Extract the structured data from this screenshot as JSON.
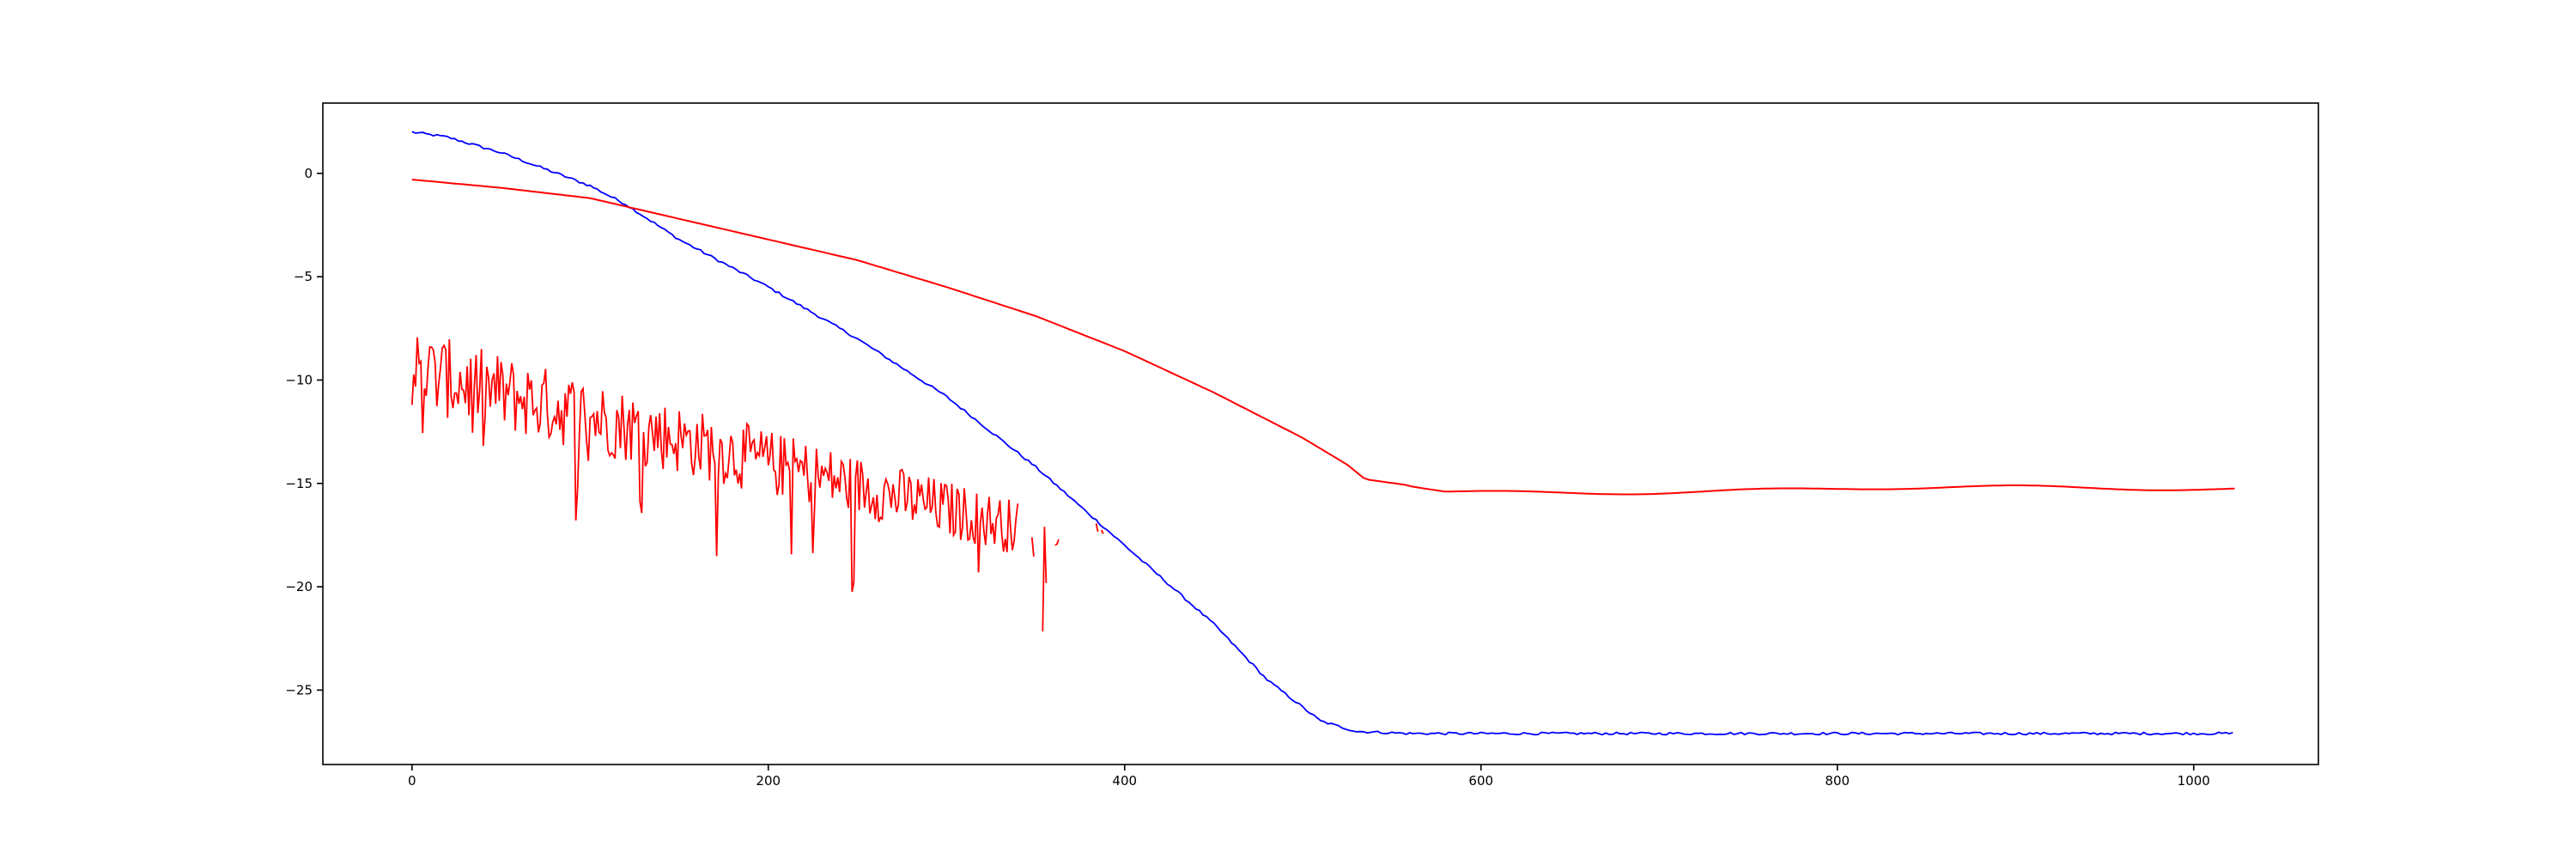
{
  "chart_data": {
    "type": "line",
    "title": "",
    "xlabel": "",
    "ylabel": "",
    "xlim": [
      -50,
      1070
    ],
    "ylim": [
      -28.6,
      3.4
    ],
    "xticks": [
      0,
      200,
      400,
      600,
      800,
      1000
    ],
    "yticks": [
      0,
      -5,
      -10,
      -15,
      -20,
      -25
    ],
    "grid": false,
    "legend": "none",
    "series": [
      {
        "color": "#0000ff",
        "style": "solid-noisy",
        "points": [
          [
            0,
            2.0
          ],
          [
            20,
            1.75
          ],
          [
            50,
            1.0
          ],
          [
            100,
            -0.6
          ],
          [
            120,
            -1.5
          ],
          [
            150,
            -3.2
          ],
          [
            200,
            -5.5
          ],
          [
            250,
            -8.0
          ],
          [
            300,
            -10.8
          ],
          [
            350,
            -14.2
          ],
          [
            400,
            -18.0
          ],
          [
            450,
            -21.8
          ],
          [
            480,
            -24.5
          ],
          [
            510,
            -26.5
          ],
          [
            530,
            -27.0
          ],
          [
            560,
            -27.1
          ],
          [
            1023,
            -27.1
          ]
        ]
      },
      {
        "color": "#ff0000",
        "style": "smooth",
        "points": [
          [
            0,
            -0.3
          ],
          [
            50,
            -0.7
          ],
          [
            100,
            -1.2
          ],
          [
            150,
            -2.2
          ],
          [
            200,
            -3.2
          ],
          [
            250,
            -4.2
          ],
          [
            300,
            -5.5
          ],
          [
            350,
            -6.9
          ],
          [
            400,
            -8.6
          ],
          [
            450,
            -10.6
          ],
          [
            500,
            -12.8
          ],
          [
            525,
            -14.1
          ],
          [
            535,
            -14.8
          ],
          [
            560,
            -15.1
          ],
          [
            580,
            -15.4
          ],
          [
            1023,
            -15.2
          ]
        ]
      },
      {
        "color": "#ff0000",
        "style": "noisy-decay",
        "x_range": [
          0,
          400
        ],
        "trend_start": -9.5,
        "trend_end": -18.5,
        "points_shown": "fragmented after x=340"
      }
    ]
  }
}
